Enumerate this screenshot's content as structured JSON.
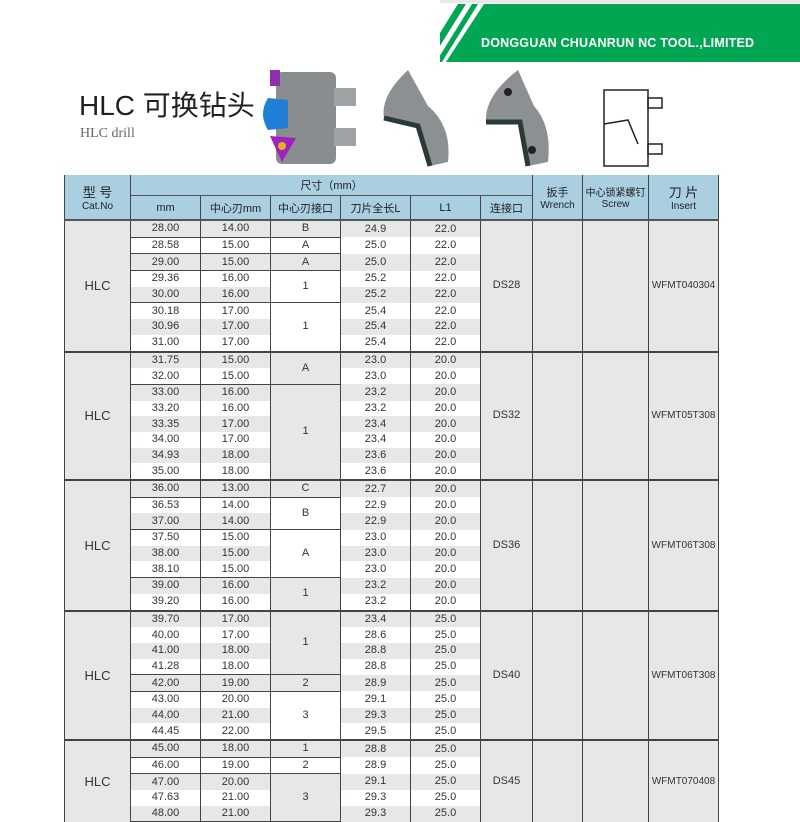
{
  "header": {
    "company": "DONGGUAN CHUANRUN NC TOOL.,LIMITED",
    "brand_color": "#00a651"
  },
  "title": {
    "main": "HLC 可换钻头",
    "sub": "HLC drill"
  },
  "table": {
    "headers": {
      "cat_cn": "型 号",
      "cat_en": "Cat.No",
      "size": "尺寸（mm）",
      "mm": "mm",
      "center_mm": "中心刃mm",
      "center_interface": "中心刃接口",
      "length": "刀片全长L",
      "l1": "L1",
      "connector": "连接口",
      "wrench_cn": "扳手",
      "wrench_en": "Wrench",
      "screw_cn": "中心锁紧螺钉",
      "screw_en": "Screw",
      "insert_cn": "刀 片",
      "insert_en": "Insert"
    },
    "groups": [
      {
        "cat": "HLC",
        "connector": "DS28",
        "insert": "WFMT040304",
        "rows": [
          [
            "28.00",
            "14.00",
            "24.9",
            "22.0"
          ],
          [
            "28.58",
            "15.00",
            "25.0",
            "22.0"
          ],
          [
            "29.00",
            "15.00",
            "25.0",
            "22.0"
          ],
          [
            "29.36",
            "16.00",
            "25.2",
            "22.0"
          ],
          [
            "30.00",
            "16.00",
            "25.2",
            "22.0"
          ],
          [
            "30.18",
            "17.00",
            "25.4",
            "22.0"
          ],
          [
            "30.96",
            "17.00",
            "25.4",
            "22.0"
          ],
          [
            "31.00",
            "17.00",
            "25.4",
            "22.0"
          ]
        ],
        "interfaces": [
          {
            "label": "B",
            "span": 1
          },
          {
            "label": "A",
            "span": 1
          },
          {
            "label": "A",
            "span": 1
          },
          {
            "label": "1",
            "span": 2
          },
          {
            "label": "1",
            "span": 3
          }
        ]
      },
      {
        "cat": "HLC",
        "connector": "DS32",
        "insert": "WFMT05T308",
        "rows": [
          [
            "31.75",
            "15.00",
            "23.0",
            "20.0"
          ],
          [
            "32.00",
            "15.00",
            "23.0",
            "20.0"
          ],
          [
            "33.00",
            "16.00",
            "23.2",
            "20.0"
          ],
          [
            "33.20",
            "16.00",
            "23.2",
            "20.0"
          ],
          [
            "33.35",
            "17.00",
            "23.4",
            "20.0"
          ],
          [
            "34.00",
            "17.00",
            "23.4",
            "20.0"
          ],
          [
            "34.93",
            "18.00",
            "23.6",
            "20.0"
          ],
          [
            "35.00",
            "18.00",
            "23.6",
            "20.0"
          ]
        ],
        "interfaces": [
          {
            "label": "A",
            "span": 2
          },
          {
            "label": "1",
            "span": 6
          }
        ]
      },
      {
        "cat": "HLC",
        "connector": "DS36",
        "insert": "WFMT06T308",
        "rows": [
          [
            "36.00",
            "13.00",
            "22.7",
            "20.0"
          ],
          [
            "36.53",
            "14.00",
            "22.9",
            "20.0"
          ],
          [
            "37.00",
            "14.00",
            "22.9",
            "20.0"
          ],
          [
            "37.50",
            "15.00",
            "23.0",
            "20.0"
          ],
          [
            "38.00",
            "15.00",
            "23.0",
            "20.0"
          ],
          [
            "38.10",
            "15.00",
            "23.0",
            "20.0"
          ],
          [
            "39.00",
            "16.00",
            "23.2",
            "20.0"
          ],
          [
            "39.20",
            "16.00",
            "23.2",
            "20.0"
          ]
        ],
        "interfaces": [
          {
            "label": "C",
            "span": 1
          },
          {
            "label": "B",
            "span": 2
          },
          {
            "label": "A",
            "span": 3
          },
          {
            "label": "1",
            "span": 2
          }
        ]
      },
      {
        "cat": "HLC",
        "connector": "DS40",
        "insert": "WFMT06T308",
        "rows": [
          [
            "39.70",
            "17.00",
            "23.4",
            "25.0"
          ],
          [
            "40.00",
            "17.00",
            "28.6",
            "25.0"
          ],
          [
            "41.00",
            "18.00",
            "28.8",
            "25.0"
          ],
          [
            "41.28",
            "18.00",
            "28.8",
            "25.0"
          ],
          [
            "42.00",
            "19.00",
            "28.9",
            "25.0"
          ],
          [
            "43.00",
            "20.00",
            "29.1",
            "25.0"
          ],
          [
            "44.00",
            "21.00",
            "29.3",
            "25.0"
          ],
          [
            "44.45",
            "22.00",
            "29.5",
            "25.0"
          ]
        ],
        "interfaces": [
          {
            "label": "1",
            "span": 4
          },
          {
            "label": "2",
            "span": 1
          },
          {
            "label": "3",
            "span": 3
          }
        ]
      },
      {
        "cat": "HLC",
        "connector": "DS45",
        "insert": "WFMT070408",
        "rows": [
          [
            "45.00",
            "18.00",
            "28.8",
            "25.0"
          ],
          [
            "46.00",
            "19.00",
            "28.9",
            "25.0"
          ],
          [
            "47.00",
            "20.00",
            "29.1",
            "25.0"
          ],
          [
            "47.63",
            "21.00",
            "29.3",
            "25.0"
          ],
          [
            "48.00",
            "21.00",
            "29.3",
            "25.0"
          ]
        ],
        "interfaces": [
          {
            "label": "1",
            "span": 1
          },
          {
            "label": "2",
            "span": 1
          },
          {
            "label": "3",
            "span": 3
          }
        ]
      }
    ]
  }
}
